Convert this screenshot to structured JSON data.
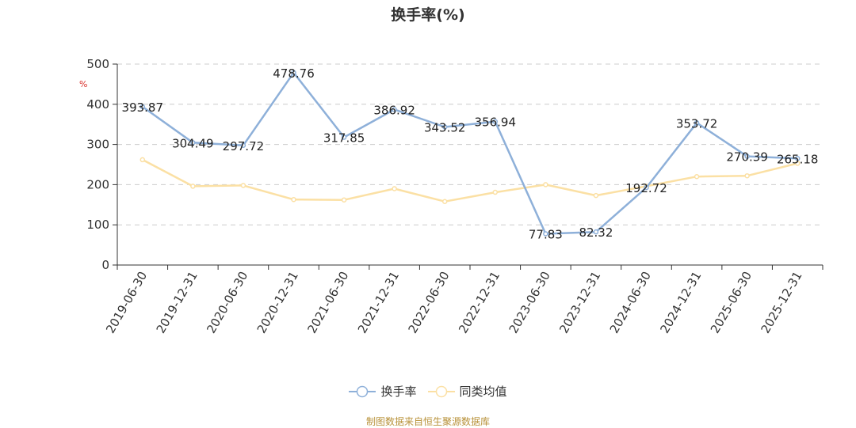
{
  "chart_data": {
    "type": "line",
    "title": "换手率(%)",
    "ylabel": "%",
    "ylim": [
      0,
      500
    ],
    "yticks": [
      0,
      100,
      200,
      300,
      400,
      500
    ],
    "grid": true,
    "legend_position": "bottom",
    "categories": [
      "2019-06-30",
      "2019-12-31",
      "2020-06-30",
      "2020-12-31",
      "2021-06-30",
      "2021-12-31",
      "2022-06-30",
      "2022-12-31",
      "2023-06-30",
      "2023-12-31",
      "2024-06-30",
      "2024-12-31",
      "2025-06-30",
      "2025-12-31"
    ],
    "series": [
      {
        "name": "换手率",
        "color": "#8eb0d9",
        "values": [
          393.87,
          304.49,
          297.72,
          478.76,
          317.85,
          386.92,
          343.52,
          356.94,
          77.83,
          82.32,
          192.72,
          353.72,
          270.39,
          265.18
        ],
        "labels": [
          "393.87",
          "304.49",
          "297.72",
          "478.76",
          "317.85",
          "386.92",
          "343.52",
          "356.94",
          "77.83",
          "82.32",
          "192.72",
          "353.72",
          "270.39",
          "265.18"
        ]
      },
      {
        "name": "同类均值",
        "color": "#fbe0a4",
        "values": [
          262,
          196,
          198,
          163,
          162,
          190,
          158,
          181,
          200,
          173,
          196,
          220,
          222,
          253
        ]
      }
    ]
  },
  "footer": "制图数据来自恒生聚源数据库"
}
